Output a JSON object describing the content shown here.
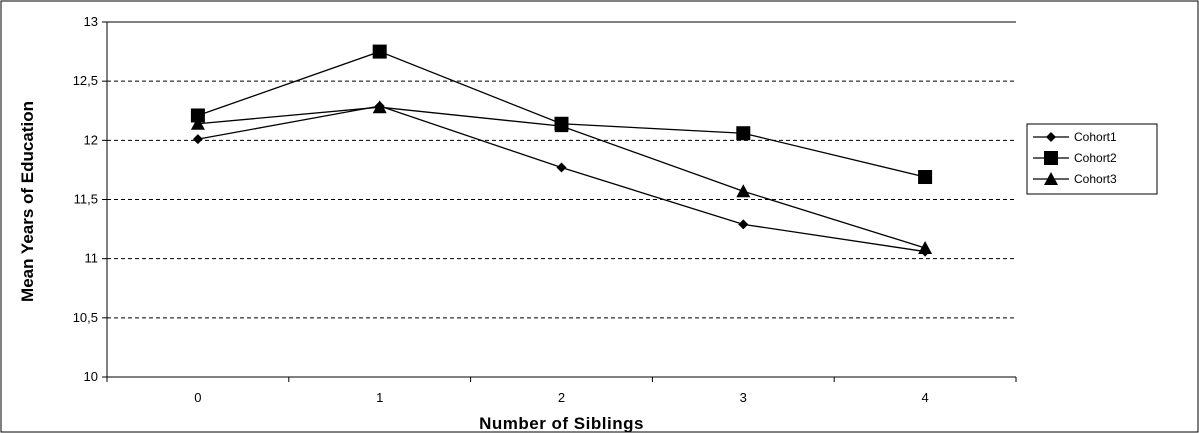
{
  "chart_data": {
    "type": "line",
    "title": "",
    "xlabel": "Number of Siblings",
    "ylabel": "Mean Years of Education",
    "categories": [
      "0",
      "1",
      "2",
      "3",
      "4"
    ],
    "ylim": [
      10,
      13
    ],
    "yticks": [
      10,
      10.5,
      11,
      11.5,
      12,
      12.5,
      13
    ],
    "ytick_labels": [
      "10",
      "10,5",
      "11",
      "11,5",
      "12",
      "12,5",
      "13"
    ],
    "grid": "horizontal dashed",
    "legend_position": "right",
    "series": [
      {
        "name": "Cohort1",
        "marker": "diamond",
        "values": [
          12.01,
          12.29,
          11.77,
          11.29,
          11.06
        ]
      },
      {
        "name": "Cohort2",
        "marker": "square",
        "values": [
          12.21,
          12.75,
          12.14,
          12.06,
          11.69
        ]
      },
      {
        "name": "Cohort3",
        "marker": "triangle",
        "values": [
          12.14,
          12.28,
          12.12,
          11.57,
          11.09
        ]
      }
    ]
  }
}
